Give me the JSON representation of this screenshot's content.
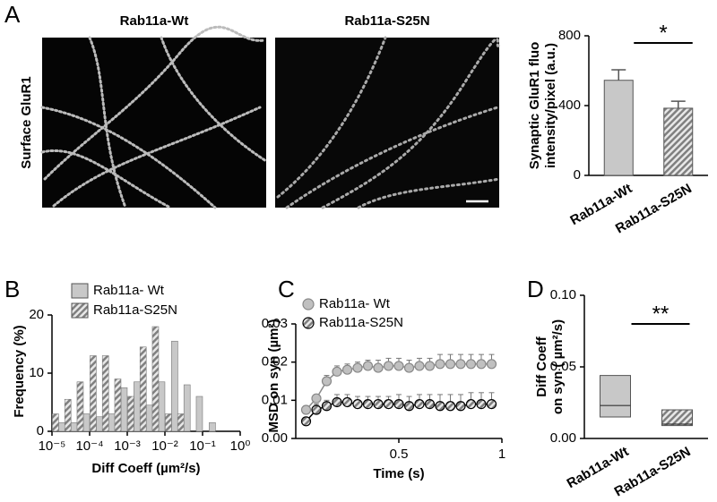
{
  "figure": {
    "panel_labels": [
      "A",
      "B",
      "C",
      "D"
    ],
    "image_titles": [
      "Rab11a-Wt",
      "Rab11a-S25N"
    ],
    "image_ylabel": "Surface GluR1"
  },
  "chart_data": [
    {
      "type": "bar",
      "ylabel": [
        "Synaptic GluR1 fluo",
        "intensity/pixel (a.u.)"
      ],
      "categories": [
        "Rab11a-Wt",
        "Rab11a-S25N"
      ],
      "values": [
        545,
        385
      ],
      "errors": [
        60,
        40
      ],
      "colors": [
        "#c8c8c8",
        "#808080"
      ],
      "hatch": [
        false,
        true
      ],
      "ylim": [
        0,
        800
      ],
      "yticks": [
        0,
        400,
        800
      ],
      "annotation": "*"
    },
    {
      "type": "logbar",
      "ylabel": "Frequency (%)",
      "xlabel": "Diff Coeff (µm²/s)",
      "xscale": "log",
      "legend": "upper left",
      "x": [
        1.5e-05,
        3.2e-05,
        6.8e-05,
        0.00015,
        0.00032,
        0.00068,
        0.0015,
        0.0032,
        0.0068,
        0.015,
        0.032,
        0.068,
        0.15
      ],
      "series": [
        {
          "name": "Rab11a- Wt",
          "color": "#c8c8c8",
          "hatch": false,
          "values": [
            1.5,
            1.5,
            3,
            2.5,
            3,
            7.5,
            8.5,
            4.5,
            8.5,
            15.5,
            8,
            6,
            1.5
          ]
        },
        {
          "name": "Rab11a-S25N",
          "color": "#808080",
          "hatch": true,
          "values": [
            3,
            5.5,
            8.5,
            13,
            13,
            9,
            6,
            14.5,
            18,
            3,
            3,
            0,
            0
          ]
        }
      ],
      "xlim": [
        1e-05,
        1
      ],
      "xticks": [
        {
          "value": 1e-05,
          "label": "10⁻⁵"
        },
        {
          "value": 0.0001,
          "label": "10⁻⁴"
        },
        {
          "value": 0.001,
          "label": "10⁻³"
        },
        {
          "value": 0.01,
          "label": "10⁻²"
        },
        {
          "value": 0.1,
          "label": "10⁻¹"
        },
        {
          "value": 1,
          "label": "10⁰"
        }
      ],
      "ylim": [
        0,
        20
      ],
      "yticks": [
        0,
        10,
        20
      ]
    },
    {
      "type": "line",
      "ylabel": "MSD on syn (µm²)",
      "xlabel": "Time (s)",
      "legend": "upper left",
      "x": [
        0.05,
        0.1,
        0.15,
        0.2,
        0.25,
        0.3,
        0.35,
        0.4,
        0.45,
        0.5,
        0.55,
        0.6,
        0.65,
        0.7,
        0.75,
        0.8,
        0.85,
        0.9,
        0.95
      ],
      "series": [
        {
          "name": "Rab11a- Wt",
          "color": "#c0c0c0",
          "hatch": false,
          "values": [
            0.0075,
            0.0105,
            0.015,
            0.0175,
            0.018,
            0.0185,
            0.019,
            0.0185,
            0.019,
            0.019,
            0.0185,
            0.019,
            0.019,
            0.0195,
            0.0195,
            0.0195,
            0.0195,
            0.0195,
            0.0195
          ],
          "errors": [
            0.001,
            0.001,
            0.0015,
            0.0015,
            0.0015,
            0.0015,
            0.0015,
            0.002,
            0.002,
            0.002,
            0.002,
            0.002,
            0.002,
            0.0025,
            0.0025,
            0.0025,
            0.0025,
            0.0025,
            0.0025
          ]
        },
        {
          "name": "Rab11a-S25N",
          "color": "#808080",
          "hatch": true,
          "values": [
            0.0045,
            0.0075,
            0.0085,
            0.0095,
            0.0095,
            0.009,
            0.009,
            0.009,
            0.009,
            0.009,
            0.0085,
            0.009,
            0.009,
            0.0085,
            0.0085,
            0.0085,
            0.009,
            0.009,
            0.009
          ],
          "errors": [
            0.001,
            0.0015,
            0.0015,
            0.002,
            0.002,
            0.002,
            0.002,
            0.002,
            0.002,
            0.0025,
            0.0025,
            0.0025,
            0.0025,
            0.003,
            0.003,
            0.003,
            0.003,
            0.003,
            0.003
          ]
        }
      ],
      "xlim": [
        0,
        1
      ],
      "xticks": [
        0.5,
        1
      ],
      "ylim": [
        0,
        0.03
      ],
      "yticks": [
        {
          "value": 0,
          "label": "0.00"
        },
        {
          "value": 0.01,
          "label": "0.01"
        },
        {
          "value": 0.02,
          "label": "0.02"
        },
        {
          "value": 0.03,
          "label": "0.03"
        }
      ]
    },
    {
      "type": "box",
      "ylabel": [
        "Diff Coeff",
        "on syn ( µm²/s)"
      ],
      "categories": [
        "Rab11a-Wt",
        "Rab11a-S25N"
      ],
      "q1": [
        0.015,
        0.009
      ],
      "median": [
        0.023,
        0.01
      ],
      "q3": [
        0.044,
        0.02
      ],
      "colors": [
        "#c8c8c8",
        "#808080"
      ],
      "hatch": [
        false,
        true
      ],
      "ylim": [
        0,
        0.1
      ],
      "yticks": [
        {
          "value": 0,
          "label": "0.00"
        },
        {
          "value": 0.05,
          "label": "0.05"
        },
        {
          "value": 0.1,
          "label": "0.10"
        }
      ],
      "annotation": "**"
    }
  ]
}
